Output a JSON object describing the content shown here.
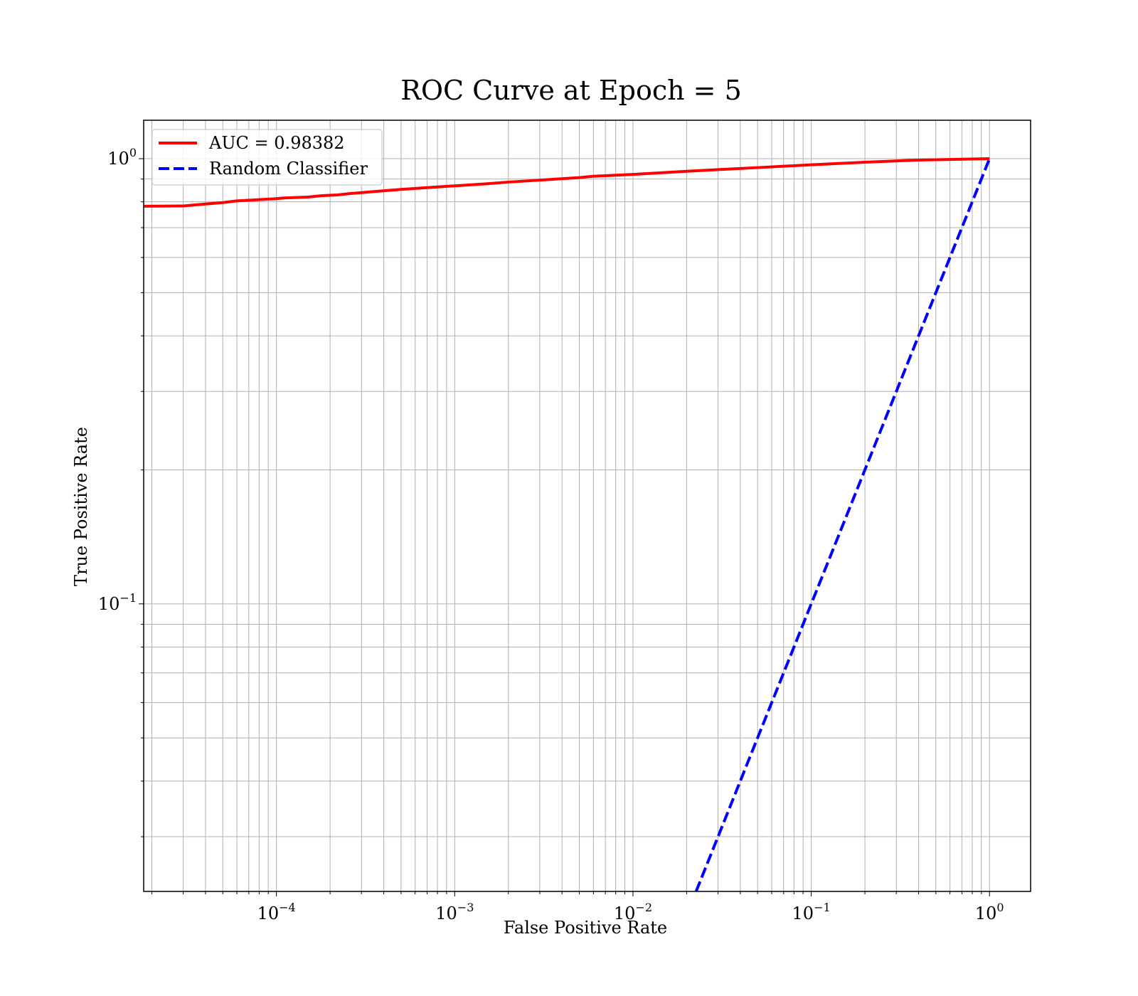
{
  "chart_data": {
    "type": "line",
    "title": "ROC Curve at Epoch = 5",
    "xlabel": "False Positive Rate",
    "ylabel": "True Positive Rate",
    "xscale": "log",
    "yscale": "log",
    "xlim": [
      1.8e-05,
      1.7
    ],
    "ylim": [
      0.0226,
      1.22
    ],
    "grid": true,
    "legend_position": "upper-left",
    "x_ticks": [
      {
        "base": "10",
        "exp": "−4",
        "value": 0.0001
      },
      {
        "base": "10",
        "exp": "−3",
        "value": 0.001
      },
      {
        "base": "10",
        "exp": "−2",
        "value": 0.01
      },
      {
        "base": "10",
        "exp": "−1",
        "value": 0.1
      },
      {
        "base": "10",
        "exp": "0",
        "value": 1
      }
    ],
    "y_ticks": [
      {
        "base": "10",
        "exp": "−1",
        "value": 0.1
      },
      {
        "base": "10",
        "exp": "0",
        "value": 1
      }
    ],
    "series": [
      {
        "name": "AUC = 0.98382",
        "color": "#ff0000",
        "style": "solid",
        "x": [
          1.8e-05,
          3e-05,
          4e-05,
          5e-05,
          6e-05,
          8e-05,
          0.0001,
          0.00011,
          0.00015,
          0.00018,
          0.00022,
          0.00026,
          0.0003,
          0.0004,
          0.0005,
          0.0007,
          0.001,
          0.0015,
          0.002,
          0.003,
          0.005,
          0.006,
          0.01,
          0.02,
          0.05,
          0.1,
          0.2,
          0.4,
          1.0
        ],
        "values": [
          0.782,
          0.783,
          0.791,
          0.797,
          0.804,
          0.809,
          0.813,
          0.816,
          0.82,
          0.826,
          0.829,
          0.835,
          0.839,
          0.847,
          0.853,
          0.861,
          0.869,
          0.878,
          0.886,
          0.895,
          0.907,
          0.913,
          0.922,
          0.937,
          0.955,
          0.969,
          0.982,
          0.993,
          1.0
        ]
      },
      {
        "name": "Random Classifier",
        "color": "#0000ff",
        "style": "dashed",
        "x": [
          0.0226,
          1.0
        ],
        "values": [
          0.0226,
          1.0
        ]
      }
    ]
  }
}
